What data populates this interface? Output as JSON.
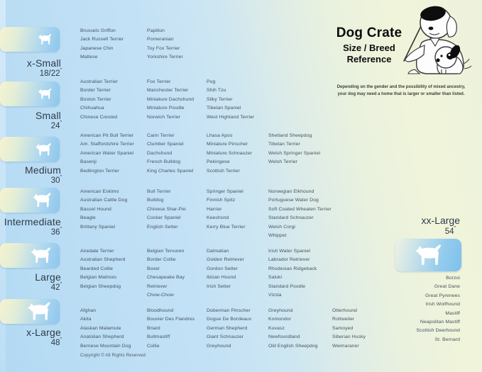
{
  "header": {
    "title": "Dog Crate",
    "subtitle_line1": "Size / Breed",
    "subtitle_line2": "Reference"
  },
  "note": {
    "line1": "Depending on the gender and the possibility of mixed ancestry,",
    "line2": "your dog may need a home that is larger or smaller than listed."
  },
  "units": "″",
  "size_sections": [
    {
      "name": "x-Small",
      "dimension": "18/22",
      "columns": [
        [
          "Brussels Griffon",
          "Jack Russell Terrier",
          "Japanese Chin",
          "Maltese"
        ],
        [
          "Papillon",
          "Pomeranian",
          "Toy Fox Terrier",
          "Yorkshire Terrier"
        ]
      ]
    },
    {
      "name": "Small",
      "dimension": "24",
      "columns": [
        [
          "Australian Terrier",
          "Border Terrier",
          "Boston Terrier",
          "Chihuahua",
          "Chinese Crested"
        ],
        [
          "Fox Terrier",
          "Manchester Terrier",
          "Miniature Dachshund",
          "Miniature Poodle",
          "Norwich Terrier"
        ],
        [
          "Pug",
          "Shih Tzu",
          "Silky Terrier",
          "Tibetan Spaniel",
          "West Highland Terrier"
        ]
      ]
    },
    {
      "name": "Medium",
      "dimension": "30",
      "columns": [
        [
          "American Pit Bull Terrier",
          "Am. Staffordshire Terrier",
          "American Water Spaniel",
          "Basenji",
          "Bedlington Terrier"
        ],
        [
          "Cairn Terrier",
          "Clumber Spaniel",
          "Dachshund",
          "French Bulldog",
          "King Charles Spaniel"
        ],
        [
          "Lhasa Apso",
          "Miniature Pinscher",
          "Miniature Schnauzer",
          "Pekingese",
          "Scottish Terrier"
        ],
        [
          "Shetland Sheepdog",
          "Tibetan Terrier",
          "Welsh Springer Spaniel",
          "Welsh Terrier"
        ]
      ]
    },
    {
      "name": "Intermediate",
      "dimension": "36",
      "columns": [
        [
          "American Eskimo",
          "Australian Cattle Dog",
          "Basset Hound",
          "Beagle",
          "Brittany Spaniel"
        ],
        [
          "Bull Terrier",
          "Bulldog",
          "Chinese Shar-Pei",
          "Cocker Spaniel",
          "English Setter"
        ],
        [
          "Springer Spaniel",
          "Finnish Spitz",
          "Harrier",
          "Keeshond",
          "Kerry Blue Terrier"
        ],
        [
          "Norwegian Elkhound",
          "Portuguese Water Dog",
          "Soft Coated Wheaten Terrier",
          "Standard Schnauzer",
          "Welsh Corgi",
          "Whippet"
        ]
      ]
    },
    {
      "name": "Large",
      "dimension": "42",
      "columns": [
        [
          "Airedale Terrier",
          "Australian Shepherd",
          "Bearded Collie",
          "Belgian Malinois",
          "Belgian Sheepdog"
        ],
        [
          "Belgian Tervuren",
          "Border Collie",
          "Boxer",
          "Chesapeake Bay Retriever",
          "Chow-Chow"
        ],
        [
          "Dalmatian",
          "Golden Retriever",
          "Gordon Setter",
          "Ibizan Hound",
          "Irish Setter"
        ],
        [
          "Irish Water Spaniel",
          "Labrador Retriever",
          "Rhodesian Ridgeback",
          "Saluki",
          "Standard Poodle",
          "Vizsla"
        ]
      ]
    },
    {
      "name": "x-Large",
      "dimension": "48",
      "columns": [
        [
          "Afghan",
          "Akita",
          "Alaskan Malamute",
          "Anatolian Shepherd",
          "Bernese Mountain Dog"
        ],
        [
          "Bloodhound",
          "Bouvier Des Flandres",
          "Briard",
          "Bullmastiff",
          "Collie"
        ],
        [
          "Doberman Pinscher",
          "Dogue De Bordeaux",
          "German Shepherd",
          "Giant Schnauzer",
          "Greyhound"
        ],
        [
          "Greyhound",
          "Komondor",
          "Kuvasz",
          "Newfoundland",
          "Old English Sheepdog"
        ],
        [
          "Otterhound",
          "Rottweiler",
          "Samoyed",
          "Siberian Husky",
          "Weimaraner"
        ]
      ]
    }
  ],
  "xx_large": {
    "name": "xx-Large",
    "dimension": "54",
    "breeds": [
      "Borzoi",
      "Great Dane",
      "Great Pyrenees",
      "Irish Wolfhound",
      "Mastiff",
      "Neapolitan Mastiff",
      "Scottish Deerhound",
      "St. Bernard"
    ]
  },
  "footer": {
    "copyright": "Copyright © All Rights Reserved"
  },
  "colors": {
    "background_blue": "#b3daf3",
    "background_green": "#f0f4da",
    "badge_cream": "#f6f3cf",
    "badge_blue": "#8cc6ec",
    "text_dark": "#2f3a48",
    "text_breed": "#45525f",
    "title_black": "#0c0c0c"
  }
}
